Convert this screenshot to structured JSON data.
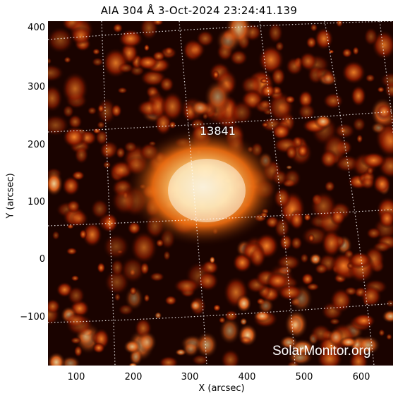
{
  "image": {
    "title": "AIA 304 Å   3-Oct-2024 23:24:41.139",
    "xlabel": "X (arcsec)",
    "ylabel": "Y (arcsec)",
    "x_ticks": [
      "100",
      "200",
      "300",
      "400",
      "500",
      "600"
    ],
    "y_ticks": [
      "400",
      "300",
      "200",
      "100",
      "0",
      "−100"
    ],
    "region_label": "13841",
    "watermark": "SolarMonitor.org",
    "colors": {
      "background": "#ffffff",
      "sun_dark": "#1a0300",
      "sun_mid": "#8a1a00",
      "sun_bright": "#ff9a3c",
      "sun_hot": "#fff0c8",
      "grid": "#ffffff"
    }
  }
}
